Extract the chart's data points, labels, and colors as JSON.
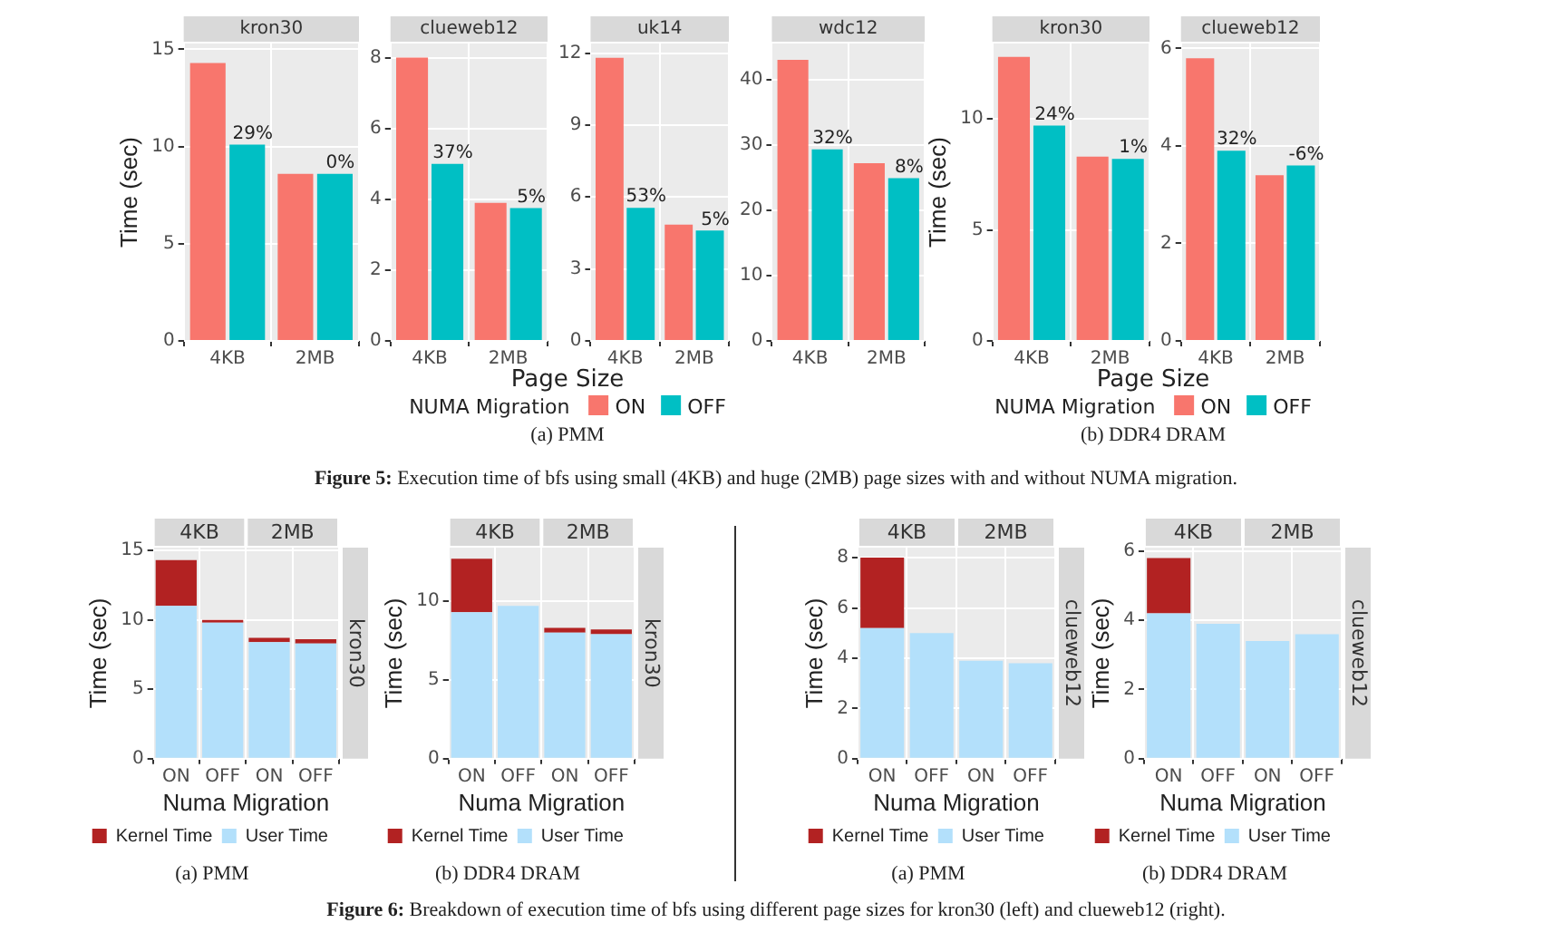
{
  "chart_data": [
    {
      "type": "bar",
      "title": "kron30",
      "ylabel": "Time (sec)",
      "categories": [
        "4KB",
        "2MB"
      ],
      "series": [
        {
          "color": "#f8766d",
          "values": [
            14.3,
            8.6
          ]
        },
        {
          "color": "#00bfc4",
          "values": [
            10.1,
            8.6
          ]
        }
      ],
      "ylim": [
        0,
        15.3
      ],
      "yticks": [
        0,
        5,
        10,
        15
      ],
      "grid": true,
      "annotations": [
        {
          "text": "29%",
          "x": "4KB",
          "y": 10.1
        },
        {
          "text": "0%",
          "x": "2MB",
          "y": 8.6
        }
      ]
    },
    {
      "type": "bar",
      "title": "clueweb12",
      "categories": [
        "4KB",
        "2MB"
      ],
      "series": [
        {
          "color": "#f8766d",
          "values": [
            8.0,
            3.9
          ]
        },
        {
          "color": "#00bfc4",
          "values": [
            5.0,
            3.75
          ]
        }
      ],
      "ylim": [
        0,
        8.4
      ],
      "yticks": [
        0,
        2,
        4,
        6,
        8
      ],
      "grid": true,
      "annotations": [
        {
          "text": "37%",
          "x": "4KB",
          "y": 5.0
        },
        {
          "text": "5%",
          "x": "2MB",
          "y": 3.75
        }
      ]
    },
    {
      "type": "bar",
      "title": "uk14",
      "categories": [
        "4KB",
        "2MB"
      ],
      "series": [
        {
          "color": "#f8766d",
          "values": [
            11.8,
            4.85
          ]
        },
        {
          "color": "#00bfc4",
          "values": [
            5.55,
            4.6
          ]
        }
      ],
      "ylim": [
        0,
        12.4
      ],
      "yticks": [
        0,
        3,
        6,
        9,
        12
      ],
      "grid": true,
      "annotations": [
        {
          "text": "53%",
          "x": "4KB",
          "y": 5.55
        },
        {
          "text": "5%",
          "x": "2MB",
          "y": 4.6
        }
      ]
    },
    {
      "type": "bar",
      "title": "wdc12",
      "xlabel": "Page Size",
      "legend": "bottom",
      "legend_title": "NUMA Migration",
      "categories": [
        "4KB",
        "2MB"
      ],
      "series": [
        {
          "name": "ON",
          "color": "#f8766d",
          "values": [
            43,
            27.2
          ]
        },
        {
          "name": "OFF",
          "color": "#00bfc4",
          "values": [
            29.3,
            24.9
          ]
        }
      ],
      "ylim": [
        0,
        45.5
      ],
      "yticks": [
        0,
        10,
        20,
        30,
        40
      ],
      "grid": true,
      "annotations": [
        {
          "text": "32%",
          "x": "4KB",
          "y": 29.3
        },
        {
          "text": "8%",
          "x": "2MB",
          "y": 24.9
        },
        "(a) PMM"
      ]
    },
    {
      "type": "bar",
      "title": "kron30",
      "ylabel": "Time (sec)",
      "categories": [
        "4KB",
        "2MB"
      ],
      "series": [
        {
          "color": "#f8766d",
          "values": [
            12.8,
            8.3
          ]
        },
        {
          "color": "#00bfc4",
          "values": [
            9.7,
            8.2
          ]
        }
      ],
      "ylim": [
        0,
        13.4
      ],
      "yticks": [
        0,
        5,
        10
      ],
      "grid": true,
      "annotations": [
        {
          "text": "24%",
          "x": "4KB",
          "y": 9.7
        },
        {
          "text": "1%",
          "x": "2MB",
          "y": 8.2
        }
      ]
    },
    {
      "type": "bar",
      "title": "clueweb12",
      "xlabel": "Page Size",
      "legend": "bottom",
      "legend_title": "NUMA Migration",
      "categories": [
        "4KB",
        "2MB"
      ],
      "series": [
        {
          "name": "ON",
          "color": "#f8766d",
          "values": [
            5.8,
            3.4
          ]
        },
        {
          "name": "OFF",
          "color": "#00bfc4",
          "values": [
            3.9,
            3.6
          ]
        }
      ],
      "ylim": [
        0,
        6.1
      ],
      "yticks": [
        0,
        2,
        4,
        6
      ],
      "grid": true,
      "annotations": [
        {
          "text": "32%",
          "x": "4KB",
          "y": 3.9
        },
        {
          "text": "-6%",
          "x": "2MB",
          "y": 3.6
        },
        "(b) DDR4 DRAM",
        "Figure 5: Execution time of bfs using small (4KB) and huge (2MB) page sizes with and without NUMA migration."
      ]
    },
    {
      "type": "bar",
      "stacked": true,
      "title": "kron30",
      "ylabel": "Time (sec)",
      "xlabel": "Numa Migration",
      "legend": "bottom",
      "categories": [
        "ON",
        "OFF",
        "ON",
        "OFF"
      ],
      "series": [
        {
          "name": "User Time",
          "color": "#b3e0fb",
          "values": [
            11.0,
            9.8,
            8.4,
            8.3
          ]
        },
        {
          "name": "Kernel Time",
          "color": "#b22222",
          "values": [
            3.3,
            0.2,
            0.3,
            0.3
          ]
        }
      ],
      "ylim": [
        0,
        15.2
      ],
      "yticks": [
        0,
        5,
        10,
        15
      ],
      "grid": true,
      "annotations": [
        "4KB",
        "2MB",
        "(a) PMM"
      ]
    },
    {
      "type": "bar",
      "stacked": true,
      "title": "kron30",
      "ylabel": "Time (sec)",
      "xlabel": "Numa Migration",
      "legend": "bottom",
      "categories": [
        "ON",
        "OFF",
        "ON",
        "OFF"
      ],
      "series": [
        {
          "name": "User Time",
          "color": "#b3e0fb",
          "values": [
            9.3,
            9.7,
            8.0,
            7.9
          ]
        },
        {
          "name": "Kernel Time",
          "color": "#b22222",
          "values": [
            3.4,
            0,
            0.3,
            0.3
          ]
        }
      ],
      "ylim": [
        0,
        13.4
      ],
      "yticks": [
        0,
        5,
        10
      ],
      "grid": true,
      "annotations": [
        "4KB",
        "2MB",
        "(b) DDR4 DRAM"
      ]
    },
    {
      "type": "bar",
      "stacked": true,
      "title": "clueweb12",
      "ylabel": "Time (sec)",
      "xlabel": "Numa Migration",
      "legend": "bottom",
      "categories": [
        "ON",
        "OFF",
        "ON",
        "OFF"
      ],
      "series": [
        {
          "name": "User Time",
          "color": "#b3e0fb",
          "values": [
            5.2,
            5.0,
            3.9,
            3.8
          ]
        },
        {
          "name": "Kernel Time",
          "color": "#b22222",
          "values": [
            2.8,
            0,
            0,
            0
          ]
        }
      ],
      "ylim": [
        0,
        8.4
      ],
      "yticks": [
        0,
        2,
        4,
        6,
        8
      ],
      "grid": true,
      "annotations": [
        "4KB",
        "2MB",
        "(a) PMM"
      ]
    },
    {
      "type": "bar",
      "stacked": true,
      "title": "clueweb12",
      "ylabel": "Time (sec)",
      "xlabel": "Numa Migration",
      "legend": "bottom",
      "categories": [
        "ON",
        "OFF",
        "ON",
        "OFF"
      ],
      "series": [
        {
          "name": "User Time",
          "color": "#b3e0fb",
          "values": [
            4.2,
            3.9,
            3.4,
            3.6
          ]
        },
        {
          "name": "Kernel Time",
          "color": "#b22222",
          "values": [
            1.6,
            0,
            0,
            0
          ]
        }
      ],
      "ylim": [
        0,
        6.1
      ],
      "yticks": [
        0,
        2,
        4,
        6
      ],
      "grid": true,
      "annotations": [
        "4KB",
        "2MB",
        "(b) DDR4 DRAM",
        "Figure 6: Breakdown of execution time of bfs using different page sizes for kron30 (left) and clueweb12 (right)."
      ]
    }
  ]
}
